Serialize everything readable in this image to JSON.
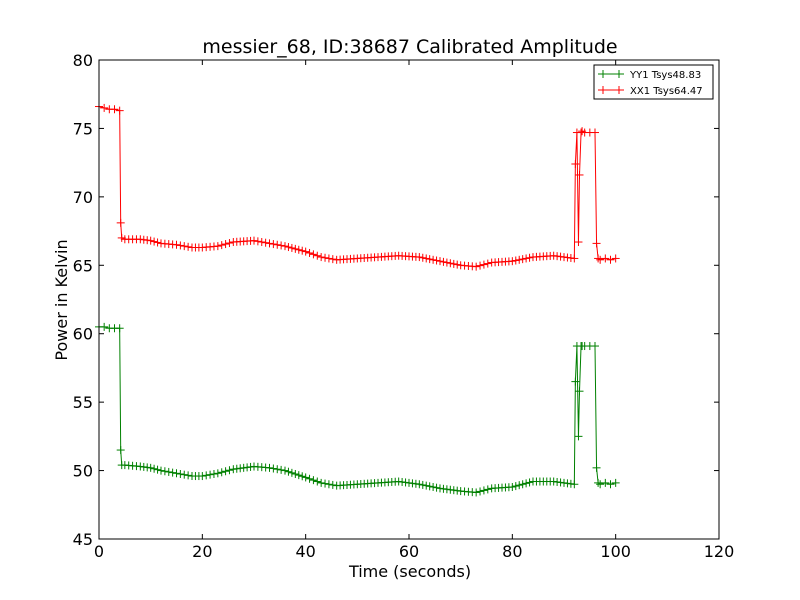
{
  "chart_data": {
    "type": "line",
    "title": "messier_68, ID:38687 Calibrated Amplitude",
    "xlabel": "Time (seconds)",
    "ylabel": "Power in Kelvin",
    "xlim": [
      0,
      120
    ],
    "ylim": [
      45,
      80
    ],
    "xticks": [
      0,
      20,
      40,
      60,
      80,
      100,
      120
    ],
    "yticks": [
      45,
      50,
      55,
      60,
      65,
      70,
      75,
      80
    ],
    "grid": false,
    "legend_position": "top-right",
    "marker": "plus",
    "series": [
      {
        "name": "YY1 Tsys48.83",
        "color": "#008000",
        "segments": [
          {
            "x": [
              0,
              1,
              2,
              3,
              4
            ],
            "y": [
              60.5,
              60.5,
              60.4,
              60.4,
              60.4
            ]
          },
          {
            "x": [
              4.2,
              4.4
            ],
            "y": [
              51.5,
              50.4
            ]
          },
          {
            "x": [
              5,
              8,
              10,
              12,
              15,
              18,
              20,
              23,
              26,
              30,
              33,
              36,
              40,
              43,
              46,
              50,
              54,
              58,
              62,
              66,
              70,
              73,
              76,
              80,
              84,
              88,
              92
            ],
            "y": [
              50.4,
              50.3,
              50.2,
              50.0,
              49.8,
              49.6,
              49.6,
              49.8,
              50.1,
              50.3,
              50.2,
              50.0,
              49.5,
              49.1,
              48.9,
              49.0,
              49.1,
              49.2,
              49.0,
              48.7,
              48.5,
              48.4,
              48.7,
              48.8,
              49.2,
              49.2,
              49.0
            ]
          },
          {
            "x": [
              92.2,
              92.5,
              92.8
            ],
            "y": [
              56.5,
              59.1,
              52.5
            ]
          },
          {
            "x": [
              93,
              93.3
            ],
            "y": [
              55.8,
              59.1
            ]
          },
          {
            "x": [
              93.5,
              94,
              95,
              96
            ],
            "y": [
              59.1,
              59.1,
              59.1,
              59.1
            ]
          },
          {
            "x": [
              96.3,
              96.6
            ],
            "y": [
              50.2,
              49.1
            ]
          },
          {
            "x": [
              97,
              98,
              99,
              100
            ],
            "y": [
              49.0,
              49.1,
              49.0,
              49.1
            ]
          }
        ]
      },
      {
        "name": "XX1 Tsys64.47",
        "color": "#ff0000",
        "segments": [
          {
            "x": [
              0,
              1,
              2,
              3,
              4
            ],
            "y": [
              76.6,
              76.5,
              76.4,
              76.4,
              76.3
            ]
          },
          {
            "x": [
              4.2,
              4.4
            ],
            "y": [
              68.1,
              67.0
            ]
          },
          {
            "x": [
              5,
              8,
              10,
              12,
              15,
              18,
              20,
              23,
              26,
              30,
              33,
              36,
              40,
              43,
              46,
              50,
              54,
              58,
              62,
              66,
              70,
              73,
              76,
              80,
              84,
              88,
              92
            ],
            "y": [
              66.9,
              66.9,
              66.8,
              66.6,
              66.5,
              66.3,
              66.3,
              66.4,
              66.7,
              66.8,
              66.6,
              66.4,
              66.0,
              65.6,
              65.4,
              65.5,
              65.6,
              65.7,
              65.6,
              65.3,
              65.0,
              64.9,
              65.2,
              65.3,
              65.6,
              65.7,
              65.5
            ]
          },
          {
            "x": [
              92.2,
              92.5,
              92.8
            ],
            "y": [
              72.4,
              74.7,
              66.7
            ]
          },
          {
            "x": [
              93,
              93.3
            ],
            "y": [
              71.6,
              74.7
            ]
          },
          {
            "x": [
              93.5,
              94,
              95,
              96
            ],
            "y": [
              74.8,
              74.7,
              74.7,
              74.7
            ]
          },
          {
            "x": [
              96.3,
              96.6
            ],
            "y": [
              66.6,
              65.5
            ]
          },
          {
            "x": [
              97,
              98,
              99,
              100
            ],
            "y": [
              65.4,
              65.5,
              65.4,
              65.5
            ]
          }
        ]
      }
    ]
  }
}
